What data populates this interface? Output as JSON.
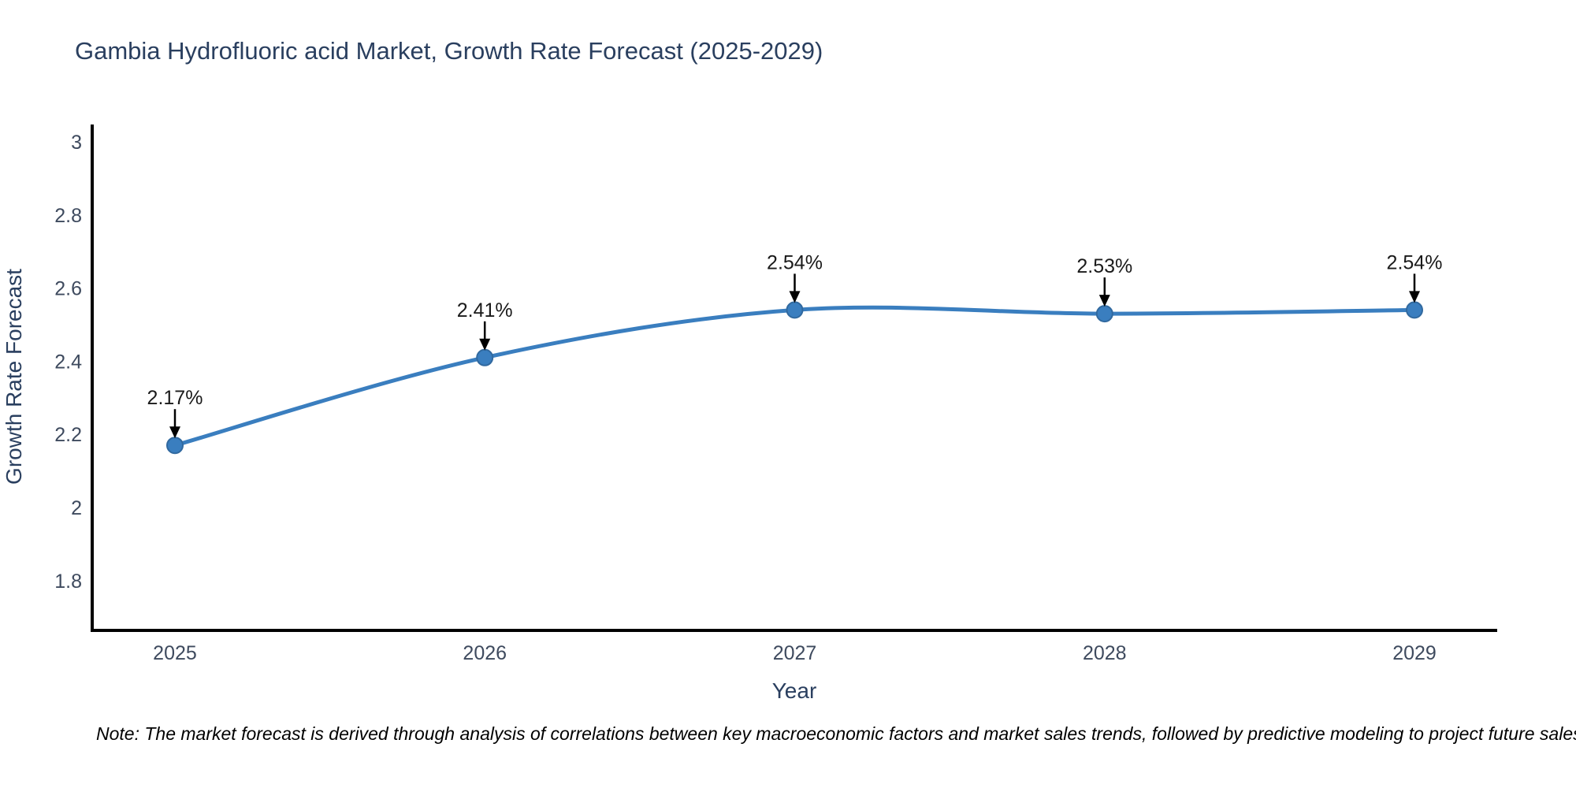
{
  "page": {
    "note": "Note: The market forecast is derived through analysis of correlations between key macroeconomic factors and market sales trends, followed by predictive modeling to project future sales"
  },
  "chart_data": {
    "type": "line",
    "title": "Gambia Hydrofluoric acid Market, Growth Rate Forecast (2025-2029)",
    "xlabel": "Year",
    "ylabel": "Growth Rate Forecast",
    "x": [
      2025,
      2026,
      2027,
      2028,
      2029
    ],
    "series": [
      {
        "name": "Growth Rate Forecast",
        "values": [
          2.17,
          2.41,
          2.54,
          2.53,
          2.54
        ],
        "point_labels": [
          "2.17%",
          "2.41%",
          "2.53%",
          "2.54%"
        ],
        "point_labels_per_x": [
          "2.17%",
          "2.41%",
          "2.54%",
          "2.53%",
          "2.54%"
        ]
      }
    ],
    "yticks": [
      1.8,
      2,
      2.2,
      2.4,
      2.6,
      2.8,
      3
    ],
    "xticks": [
      2025,
      2026,
      2027,
      2028,
      2029
    ],
    "ylim": [
      1.664,
      3.043
    ],
    "xlim": [
      2024.733,
      2029.267
    ],
    "grid": false,
    "legend": "none",
    "line_style": "spline-smoothed",
    "marker_style": "filled-circle",
    "annotation_style": "value-label-with-down-arrow",
    "colors": {
      "line": "#3a7ebf",
      "marker_fill": "#3a7ebf",
      "marker_edge": "#31699f",
      "axis_line": "#000000",
      "arrow": "#000000",
      "title_text": "#2a3f5f",
      "axis_title_text": "#2a3f5f",
      "tick_text": "#3e4a5e",
      "annotation_text": "#1a1a1a",
      "background": "#ffffff"
    }
  }
}
